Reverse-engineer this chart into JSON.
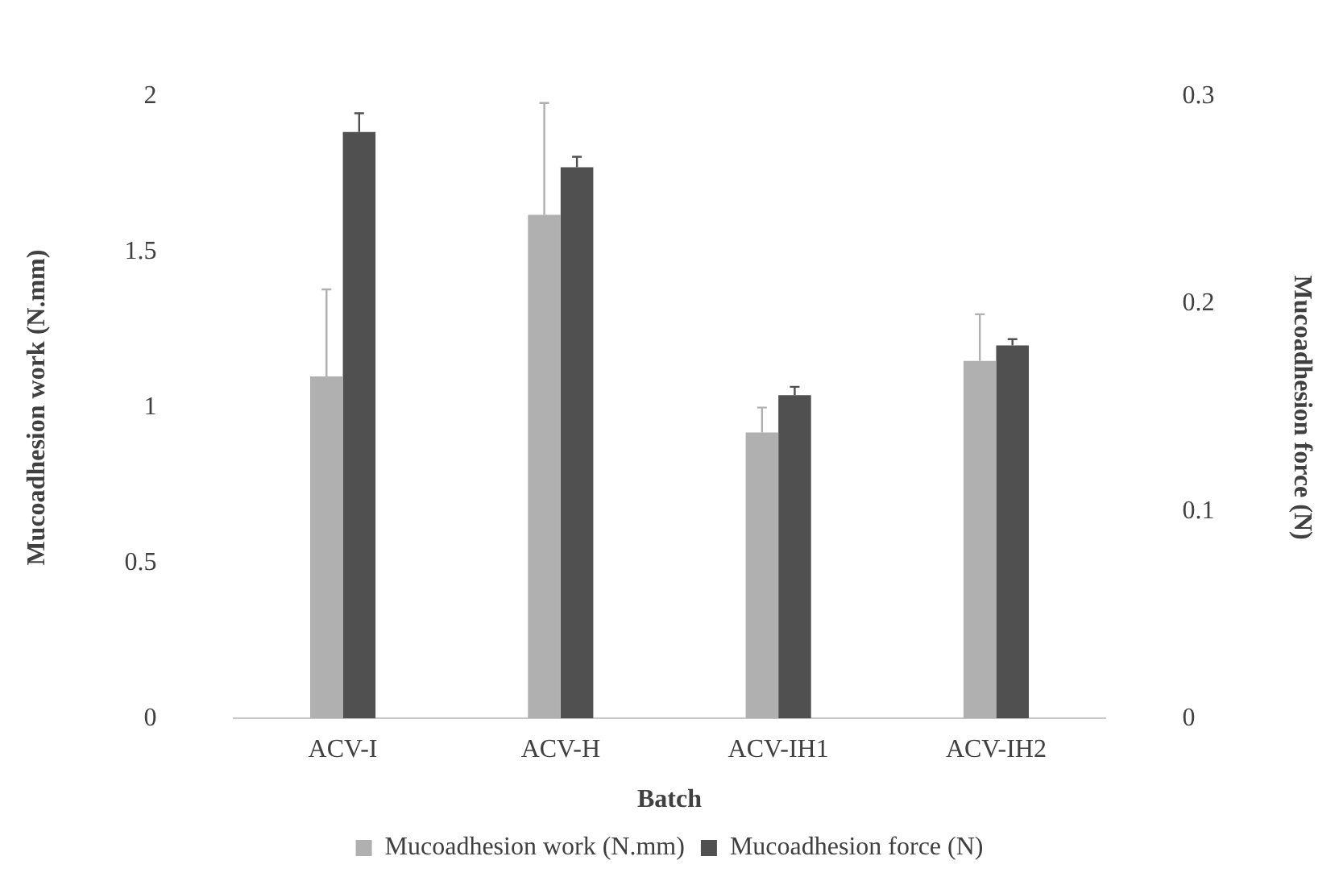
{
  "chart_data": {
    "type": "bar",
    "xlabel": "Batch",
    "ylabel": "Mucoadhesion work (N.mm)",
    "y2label": "Mucoadhesion force (N)",
    "categories": [
      "ACV-I",
      "ACV-H",
      "ACV-IH1",
      "ACV-IH2"
    ],
    "series": [
      {
        "name": "Mucoadhesion work (N.mm)",
        "color": "#b0b0b0",
        "values": [
          1.1,
          1.62,
          0.92,
          1.15
        ],
        "errors": [
          [
            1.1,
            1.38
          ],
          [
            1.62,
            1.98
          ],
          [
            0.92,
            1.0
          ],
          [
            1.15,
            1.3
          ]
        ]
      },
      {
        "name": "Mucoadhesion force (N)",
        "color": "#505050",
        "axis": "y2",
        "values": [
          0.283,
          0.266,
          0.156,
          0.18
        ],
        "errors": [
          [
            0.283,
            0.292
          ],
          [
            0.266,
            0.271
          ],
          [
            0.156,
            0.16
          ],
          [
            0.18,
            0.183
          ]
        ]
      }
    ],
    "ylim": [
      0,
      2
    ],
    "yticks": [
      0,
      0.5,
      1,
      1.5,
      2
    ],
    "y2lim": [
      0,
      0.3
    ],
    "y2ticks": [
      0,
      0.1,
      0.2,
      0.3
    ],
    "grid": false,
    "legend": "bottom"
  }
}
